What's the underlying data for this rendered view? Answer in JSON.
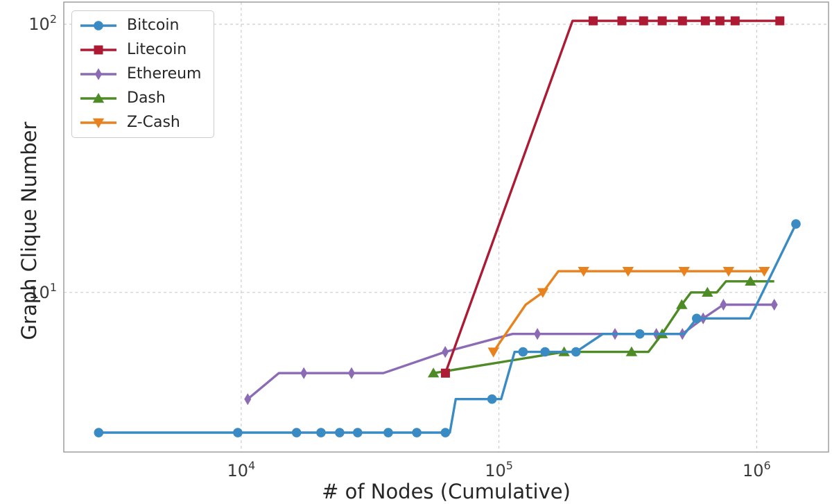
{
  "chart_data": {
    "type": "line",
    "title": "",
    "xlabel": "# of Nodes (Cumulative)",
    "ylabel": "Graph Clique Number",
    "x_scale": "log",
    "y_scale": "log",
    "x_range": [
      2050,
      1900000
    ],
    "y_range": [
      2.54,
      121
    ],
    "grid": "dashed",
    "grid_color": "#cdcdcd",
    "spine_color": "#a3a3a3",
    "tick_color": "#3a3a3a",
    "legend_position": "upper-left",
    "x_ticks": [
      {
        "value": 10000,
        "mantissa": "10",
        "exponent": "4"
      },
      {
        "value": 100000,
        "mantissa": "10",
        "exponent": "5"
      },
      {
        "value": 1000000,
        "mantissa": "10",
        "exponent": "6"
      }
    ],
    "y_ticks": [
      {
        "value": 10,
        "mantissa": "10",
        "exponent": "1"
      },
      {
        "value": 100,
        "mantissa": "10",
        "exponent": "2"
      }
    ],
    "series": [
      {
        "name": "Bitcoin",
        "color": "#3a8ac4",
        "marker": "circle",
        "points_xym": [
          [
            2800,
            3,
            1
          ],
          [
            9700,
            3,
            1
          ],
          [
            16400,
            3,
            1
          ],
          [
            20400,
            3,
            1
          ],
          [
            24100,
            3,
            1
          ],
          [
            28300,
            3,
            1
          ],
          [
            37200,
            3,
            1
          ],
          [
            48000,
            3,
            1
          ],
          [
            62000,
            3,
            1
          ],
          [
            64500,
            3,
            0
          ],
          [
            68000,
            4,
            0
          ],
          [
            94000,
            4,
            1
          ],
          [
            102000,
            4,
            0
          ],
          [
            115000,
            6,
            0
          ],
          [
            124000,
            6,
            1
          ],
          [
            151000,
            6,
            1
          ],
          [
            199000,
            6,
            1
          ],
          [
            253000,
            7,
            0
          ],
          [
            352000,
            7,
            1
          ],
          [
            525000,
            7,
            0
          ],
          [
            585000,
            8,
            1
          ],
          [
            941000,
            8,
            0
          ],
          [
            1420000,
            18,
            1
          ]
        ]
      },
      {
        "name": "Litecoin",
        "color": "#ac1a33",
        "marker": "square",
        "points_xym": [
          [
            62000,
            5,
            1
          ],
          [
            193000,
            103,
            0
          ],
          [
            232000,
            103,
            1
          ],
          [
            300000,
            103,
            1
          ],
          [
            364000,
            103,
            1
          ],
          [
            430000,
            103,
            1
          ],
          [
            515000,
            103,
            1
          ],
          [
            632000,
            103,
            1
          ],
          [
            720000,
            103,
            1
          ],
          [
            825000,
            103,
            1
          ],
          [
            1230000,
            103,
            1
          ]
        ]
      },
      {
        "name": "Ethereum",
        "color": "#8c6bb5",
        "marker": "thin-diamond",
        "points_xym": [
          [
            10600,
            4,
            1
          ],
          [
            14000,
            5,
            0
          ],
          [
            17500,
            5,
            1
          ],
          [
            26800,
            5,
            1
          ],
          [
            35600,
            5,
            0
          ],
          [
            61900,
            6,
            1
          ],
          [
            113000,
            7,
            0
          ],
          [
            141000,
            7,
            1
          ],
          [
            282000,
            7,
            1
          ],
          [
            408000,
            7,
            1
          ],
          [
            515000,
            7,
            1
          ],
          [
            620000,
            8,
            1
          ],
          [
            743000,
            9,
            1
          ],
          [
            1170000,
            9,
            1
          ]
        ]
      },
      {
        "name": "Dash",
        "color": "#4e8b26",
        "marker": "triangle-up",
        "points_xym": [
          [
            55700,
            5,
            1
          ],
          [
            179000,
            6,
            1
          ],
          [
            327000,
            6,
            1
          ],
          [
            380000,
            6,
            0
          ],
          [
            430000,
            7,
            1
          ],
          [
            512000,
            9,
            1
          ],
          [
            556000,
            10,
            0
          ],
          [
            644000,
            10,
            1
          ],
          [
            700000,
            10,
            0
          ],
          [
            760000,
            11,
            0
          ],
          [
            946000,
            11,
            1
          ],
          [
            1170000,
            11,
            0
          ]
        ]
      },
      {
        "name": "Z-Cash",
        "color": "#e8821e",
        "marker": "triangle-down",
        "points_xym": [
          [
            95200,
            6,
            1
          ],
          [
            127000,
            9,
            0
          ],
          [
            148000,
            10,
            1
          ],
          [
            170000,
            12,
            0
          ],
          [
            213000,
            12,
            1
          ],
          [
            317000,
            12,
            1
          ],
          [
            523000,
            12,
            1
          ],
          [
            778000,
            12,
            1
          ],
          [
            1070000,
            12,
            1
          ]
        ]
      }
    ]
  }
}
